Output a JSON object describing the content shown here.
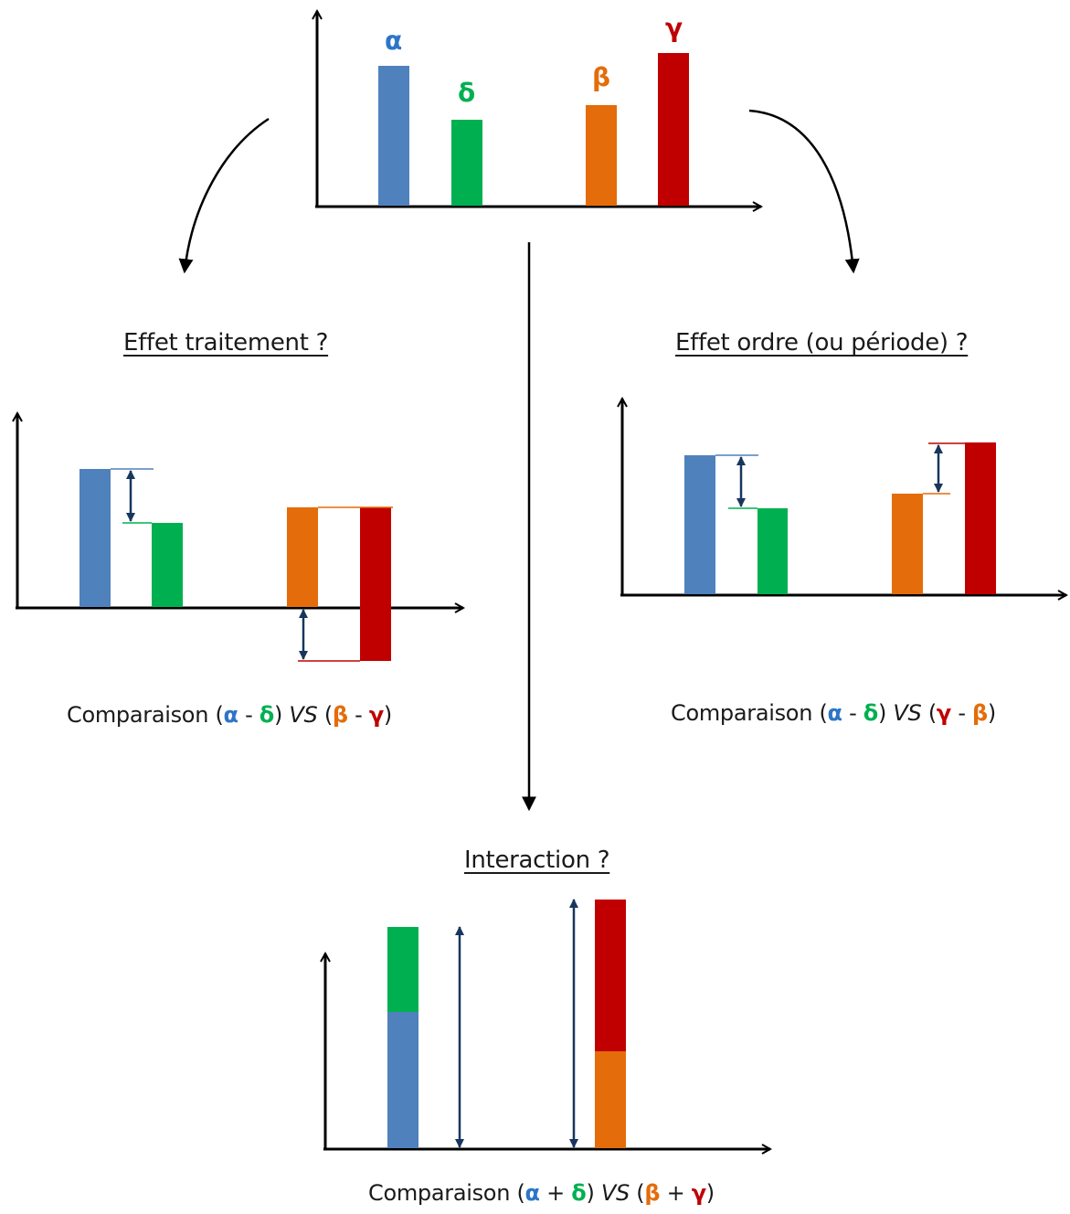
{
  "colors": {
    "alpha": "#4f81bd",
    "delta": "#00b050",
    "beta": "#e46c0a",
    "gamma": "#c00000",
    "alpha_text": "#2e75c8",
    "arrow_navy": "#17365d",
    "axis": "#000000"
  },
  "top_chart": {
    "labels": {
      "alpha": "α",
      "delta": "δ",
      "beta": "β",
      "gamma": "γ"
    }
  },
  "headings": {
    "treatment": "Effet traitement ?",
    "order": "Effet ordre (ou période) ?",
    "interaction": "Interaction ?"
  },
  "captions": {
    "treatment": {
      "word": "Comparaison",
      "open1": "(",
      "a": "α",
      "op1": "-",
      "b": "δ",
      "close1": ")",
      "vs": "VS",
      "open2": "(",
      "c": "β",
      "op2": "-",
      "d": "γ",
      "close2": ")"
    },
    "order": {
      "word": "Comparaison",
      "open1": "(",
      "a": "α",
      "op1": "-",
      "b": "δ",
      "close1": ")",
      "vs": "VS",
      "open2": "(",
      "c": "γ",
      "op2": "-",
      "d": "β",
      "close2": ")"
    },
    "interaction": {
      "word": "Comparaison",
      "open1": "(",
      "a": "α",
      "op1": "+",
      "b": "δ",
      "close1": ")",
      "vs": "VS",
      "open2": "(",
      "c": "β",
      "op2": "+",
      "d": "γ",
      "close2": ")"
    }
  }
}
